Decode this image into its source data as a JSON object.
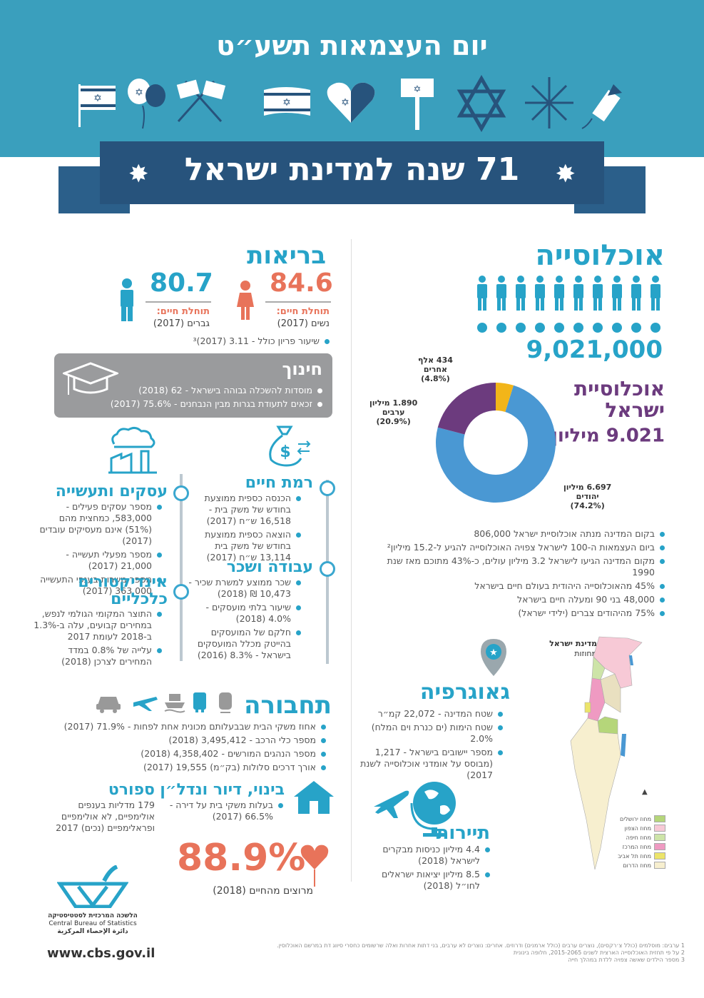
{
  "header": {
    "title": "יום העצמאות תשע״ט",
    "banner": "71 שנה למדינת ישראל",
    "icons": [
      "flag-icon",
      "balloon-icon",
      "crossed-flags-icon",
      "waving-flag-icon",
      "heart-flag-icon",
      "sign-flag-icon",
      "star-of-david-icon",
      "fireworks-icon",
      "rocket-icon"
    ]
  },
  "population": {
    "title": "אוכלוסייה",
    "total": "9,021,000",
    "sub_title_1": "אוכלוסיית",
    "sub_title_2": "ישראל",
    "sub_value": "9.021 מיליון",
    "sup": "1",
    "donut": {
      "slices": [
        {
          "label": "יהודים",
          "value_text": "6.697 מיליון",
          "pct_text": "(74.2%)",
          "pct": 74.2,
          "color": "#4a98d3"
        },
        {
          "label": "ערבים",
          "value_text": "1.890 מיליון",
          "pct_text": "(20.9%)",
          "pct": 20.9,
          "color": "#6c3b7e"
        },
        {
          "label": "אחרים",
          "value_text": "434 אלף",
          "pct_text": "(4.8%)",
          "pct": 4.8,
          "color": "#f2b519"
        }
      ]
    },
    "facts": [
      "בקום המדינה מנתה אוכלוסיית ישראל 806,000",
      "ביום העצמאות ה-100 לישראל צפויה האוכלוסייה להגיע ל-15.2 מיליון²",
      "מקום המדינה הגיעו לישראל 3.2 מיליון עולים, כ-43% מתוכם מאז שנת 1990",
      "45% מהאוכלוסייה היהודית בעולם חיים בישראל",
      "48,000 בני 90 ומעלה חיים בישראל",
      "75% מהיהודים צברים (ילידי ישראל)"
    ]
  },
  "health": {
    "title": "בריאות",
    "women_value": "84.6",
    "women_label": "תוחלת חיים:",
    "women_sub": "נשים (2017)",
    "men_value": "80.7",
    "men_label": "תוחלת חיים:",
    "men_sub": "גברים (2017)",
    "fertility": "שיעור פריון כולל - 3.11 (2017)³"
  },
  "education": {
    "title": "חינוך",
    "items": [
      "מוסדות להשכלה גבוהה בישראל - 62 (2018)",
      "זכאים לתעודת בגרות מבין הנבחנים - 75.6% (2017)"
    ]
  },
  "standard_of_living": {
    "title": "רמת חיים",
    "items": [
      "הכנסה כספית ממוצעת בחודש של משק בית - 16,518 ש״ח (2017)",
      "הוצאה כספית ממוצעת בחודש של משק בית 13,114 ש״ח (2017)"
    ]
  },
  "work": {
    "title": "עבודה ושכר",
    "items": [
      "שכר ממוצע למשרת שכיר - 10,473 ₪ (2018)",
      "שיעור בלתי מועסקים - 4.0% (2018)",
      "חלקם של המועסקים בהייטק מכלל המועסקים בישראל - 8.3% (2016)"
    ]
  },
  "business": {
    "title": "עסקים ותעשייה",
    "items": [
      "מספר עסקים פעילים - 583,000, כמחצית מהם (51%) אינם מעסיקים עובדים (2017)",
      "מספר מפעלי תעשייה - 21,000 (2017)",
      "מספר משרות בענפי התעשייה 363,000 (2017)"
    ]
  },
  "economy": {
    "title_1": "אינדיקטורים",
    "title_2": "כלכליים",
    "items": [
      "התוצר המקומי הגולמי לנפש, במחירים קבועים, עלה ב-1.3% ב-2018 לעומת 2017",
      "עלייה של 0.8% במדד המחירים לצרכן (2018)"
    ]
  },
  "transport": {
    "title": "תחבורה",
    "items": [
      "אחוז משקי הבית שבבעלותם מכונית אחת לפחות - 71.9% (2017)",
      "מספר כלי הרכב - 3,495,412 (2018)",
      "מספר הנהגים המורשים - 4,358,402 (2018)",
      "אורך דרכים סלולות (בק״מ) 19,555 (2017)"
    ]
  },
  "housing": {
    "title": "בינוי, דיור ונדל״ן",
    "items": [
      "בעלות משקי בית על דירה - 66.5% (2017)"
    ]
  },
  "sport": {
    "title": "ספורט",
    "text": "179 מדליות בענפים אולימפיים, לא אולימפיים ופראלימפיים (נכים) 2017"
  },
  "happiness": {
    "value": "88.9%",
    "label": "מרוצים מהחיים (2018)"
  },
  "geography": {
    "title": "גאוגרפיה",
    "items": [
      "שטח המדינה - 22,072 קמ״ר",
      "שטח הימות (ים כנרת וים המלח) 2.0%",
      "מספר יישובים בישראל - 1,217 (מבוסס על אומדני אוכלוסייה לשנת 2017)"
    ]
  },
  "map": {
    "title": "מדינת ישראל",
    "subtitle": "מחוזות",
    "legend": [
      {
        "label": "מחוז ירושלים",
        "color": "#b5d67a"
      },
      {
        "label": "מחוז הצפון",
        "color": "#f7c9d6"
      },
      {
        "label": "מחוז חיפה",
        "color": "#cde4a8"
      },
      {
        "label": "מחוז המרכז",
        "color": "#ef9ac2"
      },
      {
        "label": "מחוז תל אביב",
        "color": "#ece46a"
      },
      {
        "label": "מחוז הדרום",
        "color": "#f7efcf"
      }
    ]
  },
  "tourism": {
    "title": "תיירות",
    "items": [
      "4.4 מיליון כניסות מבקרים לישראל (2018)",
      "8.5 מיליון יציאות ישראלים לחו״ל (2018)"
    ]
  },
  "logo": {
    "he": "הלשכה המרכזית לסטטיסטיקה",
    "en": "Central Bureau of Statistics",
    "ar": "دائرة الإحصاء المركزية",
    "url": "www.cbs.gov.il"
  },
  "footnotes": [
    "1 ערבים: מוסלמים (כולל צ׳רקסים), נוצרים ערבים (כולל ארמנים) ודרוזים. אחרים: נוצרים לא ערבים, בני דתות אחרות ואלה שרשומים כחסרי סיווג דת במרשם האוכלוסין.",
    "2 על פי תחזית האוכלוסייה הארצית לשנים 2015-2065, חלופה בינונית",
    "3 מספר הילדים שאשה צפויה ללדת במהלך חייה"
  ]
}
